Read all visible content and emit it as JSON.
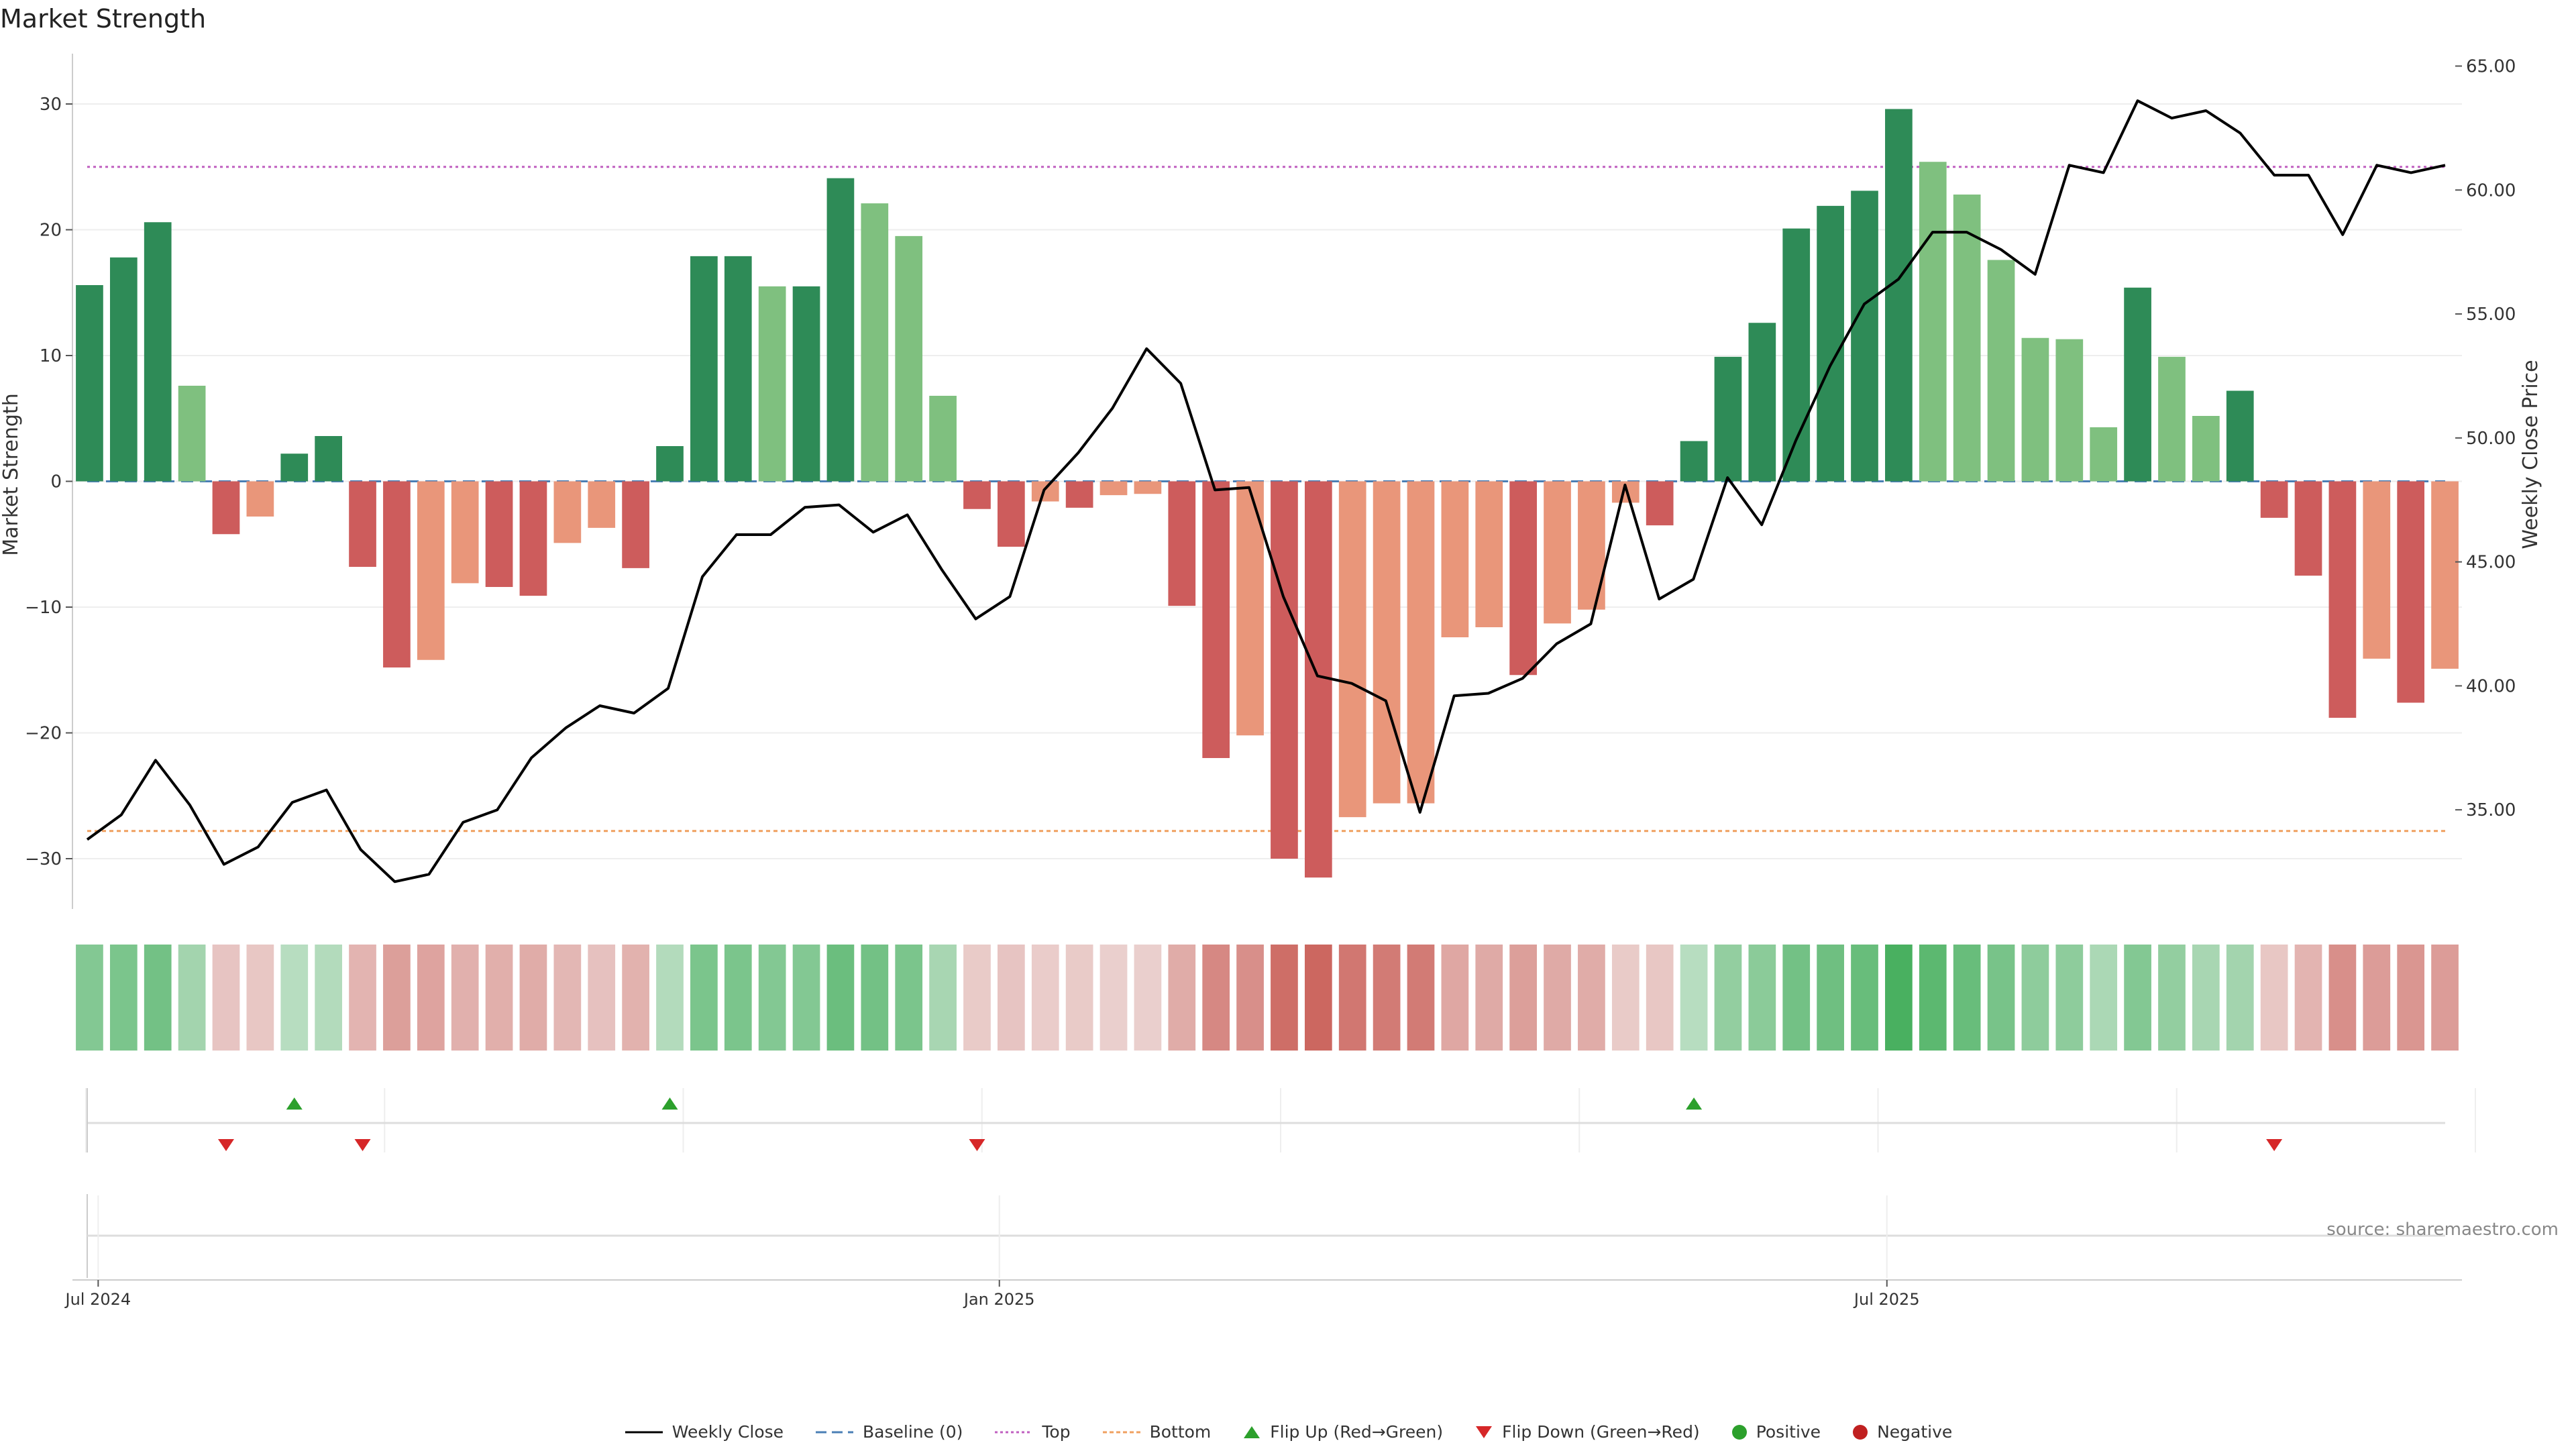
{
  "title": "Market Strength",
  "source": "source: sharemaestro.com",
  "colors": {
    "strong_pos": "#2e8b57",
    "weak_pos": "#7fc07f",
    "strong_neg": "#cd5c5c",
    "weak_neg": "#e9967a",
    "close_line": "#000000",
    "baseline": "#4a7fb5",
    "top_line": "#c060c0",
    "bottom_line": "#f0a060",
    "flip_up": "#2ca02c",
    "flip_down": "#d62728",
    "positive_dot": "#2ca02c",
    "negative_dot": "#c02020"
  },
  "chart_data": {
    "type": "bar+line",
    "left_axis": {
      "label": "Market Strength",
      "ylim": [
        -34,
        34
      ],
      "ticks": [
        -30,
        -20,
        -10,
        0,
        10,
        20,
        30
      ],
      "tick_labels": [
        "−30",
        "−20",
        "−10",
        "0",
        "10",
        "20",
        "30"
      ]
    },
    "right_axis": {
      "label": "Weekly Close Price",
      "ylim": [
        31,
        65.5
      ],
      "ticks": [
        35,
        40,
        45,
        50,
        55,
        60,
        65
      ],
      "tick_labels": [
        "35.00",
        "40.00",
        "45.00",
        "50.00",
        "55.00",
        "60.00",
        "65.00"
      ]
    },
    "x_ticks": [
      {
        "label": "Jul 2024",
        "index": 0.4
      },
      {
        "label": "Jan 2025",
        "index": 26.8
      },
      {
        "label": "Jul 2025",
        "index": 52.8
      }
    ],
    "top_level": 25,
    "bottom_level": -27.8,
    "strength": [
      15.6,
      17.8,
      20.6,
      7.6,
      -4.2,
      -2.8,
      2.2,
      3.6,
      -6.8,
      -14.8,
      -14.2,
      -8.1,
      -8.4,
      -9.1,
      -4.9,
      -3.7,
      -6.9,
      2.8,
      17.9,
      17.9,
      15.5,
      15.5,
      24.1,
      22.1,
      19.5,
      6.8,
      -2.2,
      -5.2,
      -1.6,
      -2.1,
      -1.1,
      -1.0,
      -9.9,
      -22.0,
      -20.2,
      -30.0,
      -31.5,
      -26.7,
      -25.6,
      -25.6,
      -12.4,
      -11.6,
      -15.4,
      -11.3,
      -10.2,
      -1.7,
      -3.5,
      3.2,
      9.9,
      12.6,
      20.1,
      21.9,
      23.1,
      29.6,
      25.4,
      22.8,
      17.6,
      11.4,
      11.3,
      4.3,
      15.4,
      9.9,
      5.2,
      7.2,
      -2.9,
      -7.5,
      -18.8,
      -14.1,
      -17.6,
      -14.9
    ],
    "strength_class": [
      "S",
      "S",
      "S",
      "W",
      "S",
      "W",
      "S",
      "S",
      "S",
      "S",
      "W",
      "W",
      "S",
      "S",
      "W",
      "W",
      "S",
      "S",
      "S",
      "S",
      "W",
      "S",
      "S",
      "W",
      "W",
      "W",
      "S",
      "S",
      "W",
      "S",
      "W",
      "W",
      "S",
      "S",
      "W",
      "S",
      "S",
      "W",
      "W",
      "W",
      "W",
      "W",
      "S",
      "W",
      "W",
      "W",
      "S",
      "S",
      "S",
      "S",
      "S",
      "S",
      "S",
      "S",
      "W",
      "W",
      "W",
      "W",
      "W",
      "W",
      "S",
      "W",
      "W",
      "S",
      "S",
      "S",
      "S",
      "W",
      "S",
      "W"
    ],
    "weekly_close": [
      33.8,
      34.8,
      37.0,
      35.2,
      32.8,
      33.5,
      35.3,
      35.8,
      33.4,
      32.1,
      32.4,
      34.5,
      35.0,
      37.1,
      38.3,
      39.2,
      38.9,
      39.9,
      44.4,
      46.1,
      46.1,
      47.2,
      47.3,
      46.2,
      46.9,
      44.7,
      42.7,
      43.6,
      47.9,
      49.4,
      51.2,
      53.6,
      52.2,
      47.9,
      48.0,
      43.6,
      40.4,
      40.1,
      39.4,
      34.9,
      39.6,
      39.7,
      40.3,
      41.7,
      42.5,
      48.1,
      43.5,
      44.3,
      48.4,
      46.5,
      49.9,
      52.9,
      55.4,
      56.4,
      58.3,
      58.3,
      57.6,
      56.6,
      61.0,
      60.7,
      63.6,
      62.9,
      63.2,
      62.3,
      60.6,
      60.6,
      58.2,
      61.0,
      60.7,
      61.0
    ],
    "heat_intensity": [
      0.55,
      0.6,
      0.65,
      0.35,
      -0.2,
      -0.18,
      0.22,
      0.25,
      -0.32,
      -0.48,
      -0.45,
      -0.35,
      -0.36,
      -0.38,
      -0.3,
      -0.22,
      -0.34,
      0.25,
      0.6,
      0.6,
      0.55,
      0.55,
      0.7,
      0.65,
      0.6,
      0.32,
      -0.15,
      -0.2,
      -0.14,
      -0.15,
      -0.12,
      -0.12,
      -0.38,
      -0.65,
      -0.6,
      -0.85,
      -0.9,
      -0.78,
      -0.75,
      -0.75,
      -0.42,
      -0.4,
      -0.48,
      -0.4,
      -0.38,
      -0.15,
      -0.18,
      0.22,
      0.45,
      0.5,
      0.65,
      0.68,
      0.72,
      0.92,
      0.8,
      0.72,
      0.62,
      0.48,
      0.48,
      0.3,
      0.55,
      0.45,
      0.32,
      0.35,
      -0.18,
      -0.32,
      -0.6,
      -0.5,
      -0.55,
      -0.5
    ],
    "flip_up_weeks": [
      6,
      17,
      47
    ],
    "flip_down_weeks": [
      4,
      8,
      26,
      64
    ],
    "legend": [
      "Weekly Close",
      "Baseline (0)",
      "Top",
      "Bottom",
      "Flip Up (Red→Green)",
      "Flip Down (Green→Red)",
      "Positive",
      "Negative"
    ]
  }
}
